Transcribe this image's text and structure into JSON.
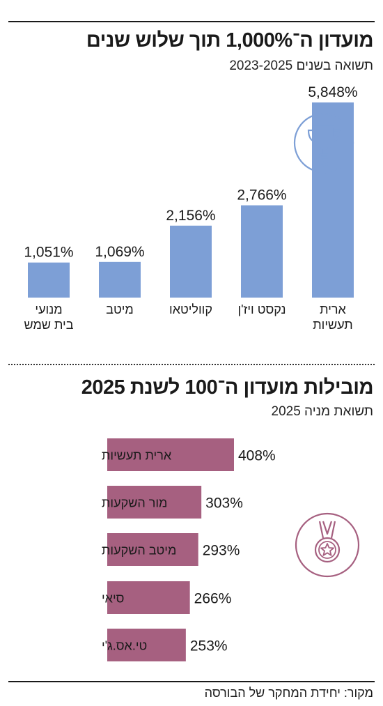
{
  "section1": {
    "title": "מועדון ה־1,000% תוך שלוש שנים",
    "subtitle": "תשואה בשנים 2023-2025"
  },
  "section2": {
    "title": "מובילות מועדון ה־100 לשנת 2025",
    "subtitle": "תשואת מניה 2025"
  },
  "source": "מקור: יחידת המחקר של הבורסה",
  "colors": {
    "bar1": "#7d9fd6",
    "bar2": "#a66080",
    "icon1": "#7d9fd6",
    "icon2": "#a66080"
  },
  "icons": {
    "chart1": "trophy-icon",
    "chart2": "medal-icon"
  },
  "chart_data": [
    {
      "type": "bar",
      "orientation": "vertical",
      "title": "מועדון ה־1,000% תוך שלוש שנים",
      "subtitle": "תשואה בשנים 2023-2025",
      "categories": [
        [
          "ארית",
          "תעשיות"
        ],
        [
          "נקסט ויז'ן"
        ],
        [
          "קווליטאו"
        ],
        [
          "מיטב"
        ],
        [
          "מנועי",
          "בית שמש"
        ]
      ],
      "values": [
        5848,
        2766,
        2156,
        1069,
        1051
      ],
      "value_labels": [
        "5,848%",
        "2,766%",
        "2,156%",
        "1,069%",
        "1,051%"
      ],
      "ylim": [
        0,
        5848
      ],
      "grid": false,
      "legend": "none"
    },
    {
      "type": "bar",
      "orientation": "horizontal",
      "title": "מובילות מועדון ה־100 לשנת 2025",
      "subtitle": "תשואת מניה 2025",
      "categories": [
        "ארית תעשיות",
        "מור השקעות",
        "מיטב השקעות",
        "סיאי",
        "טי.אס.ג'י"
      ],
      "values": [
        408,
        303,
        293,
        266,
        253
      ],
      "value_labels": [
        "408%",
        "303%",
        "293%",
        "266%",
        "253%"
      ],
      "xlim": [
        0,
        408
      ],
      "grid": false,
      "legend": "none"
    }
  ]
}
